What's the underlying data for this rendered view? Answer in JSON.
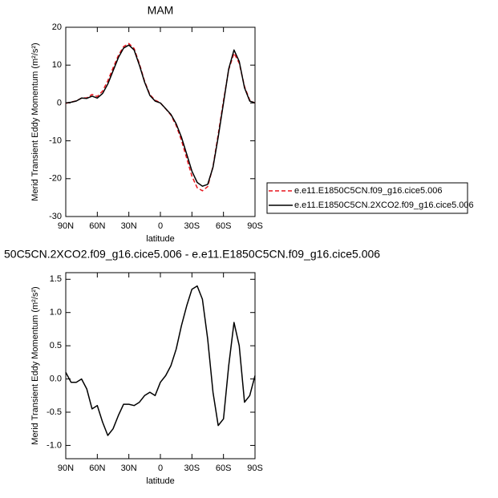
{
  "chart_data": [
    {
      "type": "line",
      "title": "MAM",
      "xlabel": "latitude",
      "ylabel": "Merid Transient Eddy Momentum (m²/s²)",
      "x": [
        90,
        85,
        80,
        75,
        70,
        65,
        60,
        55,
        50,
        45,
        40,
        35,
        30,
        25,
        20,
        15,
        10,
        5,
        0,
        -5,
        -10,
        -15,
        -20,
        -25,
        -30,
        -35,
        -40,
        -45,
        -50,
        -55,
        -60,
        -65,
        -70,
        -75,
        -80,
        -85,
        -90
      ],
      "xlim": [
        90,
        -90
      ],
      "xticks": [
        {
          "value": 90,
          "label": "90N"
        },
        {
          "value": 60,
          "label": "60N"
        },
        {
          "value": 30,
          "label": "30N"
        },
        0,
        {
          "value": -30,
          "label": "30S"
        },
        {
          "value": -60,
          "label": "60S"
        },
        {
          "value": -90,
          "label": "90S"
        }
      ],
      "ylim": [
        -30,
        20
      ],
      "yticks": [
        -30,
        -20,
        -10,
        0,
        10,
        20
      ],
      "legend": "outside-right",
      "series": [
        {
          "name": "e.e11.E1850C5CN.f09_g16.cice5.006",
          "color": "#e8141c",
          "linestyle": "dashed",
          "values": [
            -0.1,
            0.25,
            0.55,
            1.3,
            1.35,
            2.25,
            1.7,
            3.15,
            5.85,
            9.25,
            12.55,
            14.9,
            15.7,
            14.4,
            10.35,
            5.75,
            2.2,
            0.75,
            0.05,
            -1.55,
            -3.2,
            -5.95,
            -9.8,
            -14.6,
            -19.35,
            -22.4,
            -23.2,
            -22.1,
            -16.8,
            -8.3,
            0.6,
            8.8,
            13.15,
            10.5,
            4.35,
            0.75,
            -0.05
          ]
        },
        {
          "name": "e.e11.E1850C5CN.2XCO2.f09_g16.cice5.006",
          "color": "#000000",
          "linestyle": "solid",
          "values": [
            0,
            0.2,
            0.5,
            1.3,
            1.2,
            1.8,
            1.3,
            2.5,
            5,
            8.5,
            12,
            14.5,
            15.3,
            14,
            10,
            5.5,
            2,
            0.5,
            0,
            -1.5,
            -3,
            -5.5,
            -9,
            -13.5,
            -18,
            -21,
            -22,
            -21.5,
            -17,
            -9,
            0,
            9,
            14,
            11,
            4,
            0.5,
            0
          ]
        }
      ]
    },
    {
      "type": "line",
      "title": "50C5CN.2XCO2.f09_g16.cice5.006 - e.e11.E1850C5CN.f09_g16.cice5.006",
      "xlabel": "latitude",
      "ylabel": "Merid Transient Eddy Momentum (m²/s²)",
      "x": [
        90,
        85,
        80,
        75,
        70,
        65,
        60,
        55,
        50,
        45,
        40,
        35,
        30,
        25,
        20,
        15,
        10,
        5,
        0,
        -5,
        -10,
        -15,
        -20,
        -25,
        -30,
        -35,
        -40,
        -45,
        -50,
        -55,
        -60,
        -65,
        -70,
        -75,
        -80,
        -85,
        -90
      ],
      "xlim": [
        90,
        -90
      ],
      "xticks": [
        {
          "value": 90,
          "label": "90N"
        },
        {
          "value": 60,
          "label": "60N"
        },
        {
          "value": 30,
          "label": "30N"
        },
        0,
        {
          "value": -30,
          "label": "30S"
        },
        {
          "value": -60,
          "label": "60S"
        },
        {
          "value": -90,
          "label": "90S"
        }
      ],
      "ylim": [
        -1.2,
        1.6
      ],
      "yticks": [
        {
          "value": -1,
          "label": "-1.0"
        },
        -0.5,
        {
          "value": 0,
          "label": "0.0"
        },
        0.5,
        {
          "value": 1,
          "label": "1.0"
        },
        1.5
      ],
      "series": [
        {
          "color": "#000000",
          "linestyle": "solid",
          "values": [
            0.1,
            -0.05,
            -0.05,
            0,
            -0.15,
            -0.45,
            -0.4,
            -0.65,
            -0.85,
            -0.75,
            -0.55,
            -0.38,
            -0.38,
            -0.4,
            -0.35,
            -0.25,
            -0.2,
            -0.25,
            -0.05,
            0.05,
            0.2,
            0.45,
            0.8,
            1.1,
            1.35,
            1.4,
            1.2,
            0.6,
            -0.2,
            -0.7,
            -0.6,
            0.2,
            0.85,
            0.5,
            -0.35,
            -0.25,
            0.05
          ]
        }
      ]
    }
  ]
}
